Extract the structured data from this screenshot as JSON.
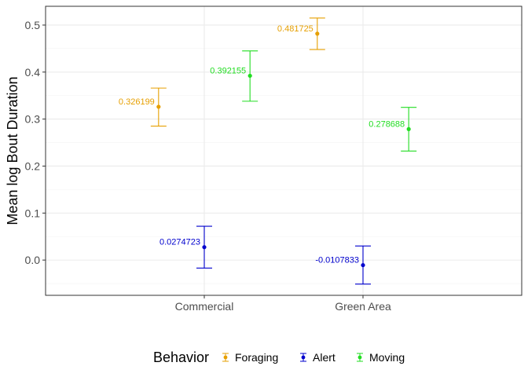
{
  "chart_data": {
    "type": "scatter",
    "categories": [
      "Commercial",
      "Green Area"
    ],
    "ylabel": "Mean log Bout Duration",
    "xlabel": "",
    "ylim": [
      -0.075,
      0.54
    ],
    "yticks": [
      0.0,
      0.1,
      0.2,
      0.3,
      0.4,
      0.5
    ],
    "ytick_labels": [
      "0.0",
      "0.1",
      "0.2",
      "0.3",
      "0.4",
      "0.5"
    ],
    "grid": true,
    "legend": {
      "title": "Behavior",
      "position": "bottom"
    },
    "series": [
      {
        "name": "Foraging",
        "color": "#E69F00",
        "points": [
          {
            "category": "Commercial",
            "y": 0.326199,
            "lower": 0.285,
            "upper": 0.366,
            "label": "0.326199"
          },
          {
            "category": "Green Area",
            "y": 0.481725,
            "lower": 0.448,
            "upper": 0.515,
            "label": "0.481725"
          }
        ]
      },
      {
        "name": "Alert",
        "color": "#0000CD",
        "points": [
          {
            "category": "Commercial",
            "y": 0.0274723,
            "lower": -0.017,
            "upper": 0.072,
            "label": "0.0274723"
          },
          {
            "category": "Green Area",
            "y": -0.0107833,
            "lower": -0.051,
            "upper": 0.03,
            "label": "-0.0107833"
          }
        ]
      },
      {
        "name": "Moving",
        "color": "#22DD22",
        "points": [
          {
            "category": "Commercial",
            "y": 0.392155,
            "lower": 0.338,
            "upper": 0.445,
            "label": "0.392155"
          },
          {
            "category": "Green Area",
            "y": 0.278688,
            "lower": 0.232,
            "upper": 0.325,
            "label": "0.278688"
          }
        ]
      }
    ]
  }
}
